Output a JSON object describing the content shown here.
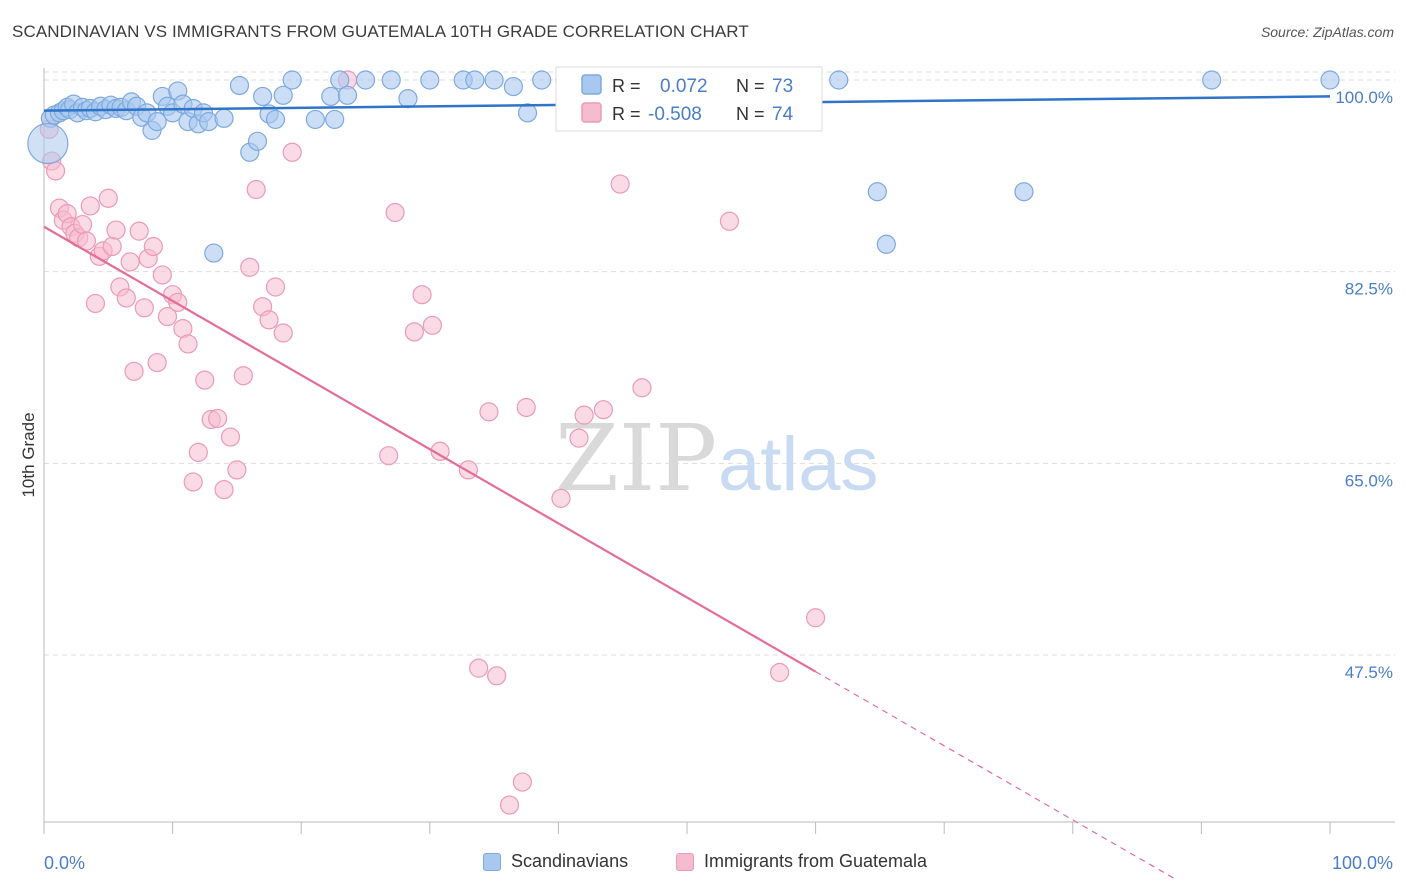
{
  "title": "SCANDINAVIAN VS IMMIGRANTS FROM GUATEMALA 10TH GRADE CORRELATION CHART",
  "source": "Source: ZipAtlas.com",
  "watermark": {
    "zip": "ZIP",
    "atlas": "atlas"
  },
  "colors": {
    "blue_fill": "#a9c8ef",
    "blue_stroke": "#7ea9e0",
    "blue_line": "#2f74c8",
    "pink_fill": "#f5bccf",
    "pink_stroke": "#ec9ab5",
    "pink_line": "#e46d98",
    "axis_label": "#4a7ec9",
    "grid": "#dddddd"
  },
  "legend_top": {
    "rows": [
      {
        "r_label": "R =",
        "r_value": "0.072",
        "n_label": "N =",
        "n_value": "73"
      },
      {
        "r_label": "R =",
        "r_value": "-0.508",
        "n_label": "N =",
        "n_value": "74"
      }
    ]
  },
  "legend_bottom": {
    "items": [
      {
        "label": "Scandinavians"
      },
      {
        "label": "Immigrants from Guatemala"
      }
    ]
  },
  "chart_data": {
    "type": "scatter",
    "title": "SCANDINAVIAN VS IMMIGRANTS FROM GUATEMALA 10TH GRADE CORRELATION CHART",
    "xlabel": "",
    "ylabel": "10th Grade",
    "xlim": [
      0,
      100
    ],
    "ylim": [
      30,
      101.5
    ],
    "x_tick_labels": [
      "0.0%",
      "100.0%"
    ],
    "y_ticks": [
      100,
      82.5,
      65,
      47.5
    ],
    "y_tick_labels": [
      "100.0%",
      "82.5%",
      "65.0%",
      "47.5%"
    ],
    "grid": true,
    "legend_placement": "top-center",
    "series": [
      {
        "name": "Scandinavians",
        "r": 0.072,
        "n": 73,
        "trend": {
          "x0": 0,
          "y0": 97.2,
          "x1": 100,
          "y1": 98.5,
          "dashed_from": null
        },
        "points": [
          [
            0.5,
            96.5
          ],
          [
            0.8,
            96.8
          ],
          [
            1.2,
            97.0
          ],
          [
            1.5,
            97.2
          ],
          [
            1.8,
            97.5
          ],
          [
            2.0,
            97.3
          ],
          [
            2.3,
            97.8
          ],
          [
            2.6,
            97.0
          ],
          [
            3.0,
            97.5
          ],
          [
            3.3,
            97.2
          ],
          [
            3.6,
            97.4
          ],
          [
            4.0,
            97.1
          ],
          [
            4.4,
            97.6
          ],
          [
            4.8,
            97.3
          ],
          [
            5.2,
            97.7
          ],
          [
            5.6,
            97.4
          ],
          [
            6.0,
            97.5
          ],
          [
            6.4,
            97.2
          ],
          [
            6.8,
            98.0
          ],
          [
            7.2,
            97.6
          ],
          [
            7.6,
            96.6
          ],
          [
            8.0,
            97.0
          ],
          [
            8.4,
            95.4
          ],
          [
            8.8,
            96.2
          ],
          [
            9.2,
            98.5
          ],
          [
            9.6,
            97.6
          ],
          [
            10.0,
            97.0
          ],
          [
            10.4,
            99.0
          ],
          [
            10.8,
            97.8
          ],
          [
            11.2,
            96.2
          ],
          [
            11.6,
            97.4
          ],
          [
            12.0,
            96.0
          ],
          [
            12.4,
            97.0
          ],
          [
            12.8,
            96.2
          ],
          [
            13.2,
            84.2
          ],
          [
            14.0,
            96.5
          ],
          [
            15.2,
            99.5
          ],
          [
            16.0,
            93.4
          ],
          [
            16.6,
            94.4
          ],
          [
            17.0,
            98.5
          ],
          [
            17.5,
            96.9
          ],
          [
            18.0,
            96.4
          ],
          [
            18.6,
            98.6
          ],
          [
            19.3,
            100
          ],
          [
            21.1,
            96.4
          ],
          [
            22.3,
            98.5
          ],
          [
            22.6,
            96.4
          ],
          [
            23.0,
            100
          ],
          [
            23.6,
            98.6
          ],
          [
            25.0,
            100
          ],
          [
            27.0,
            100
          ],
          [
            28.3,
            98.3
          ],
          [
            30.0,
            100
          ],
          [
            32.6,
            100
          ],
          [
            33.5,
            100
          ],
          [
            35.0,
            100
          ],
          [
            36.5,
            99.4
          ],
          [
            37.6,
            97.0
          ],
          [
            38.7,
            100
          ],
          [
            40.5,
            100
          ],
          [
            42.1,
            100
          ],
          [
            44.2,
            100
          ],
          [
            46.6,
            100
          ],
          [
            51.8,
            100
          ],
          [
            55.0,
            100
          ],
          [
            57.2,
            100
          ],
          [
            58.0,
            100
          ],
          [
            61.8,
            100
          ],
          [
            64.8,
            89.8
          ],
          [
            65.5,
            85.0
          ],
          [
            76.2,
            89.8
          ],
          [
            90.8,
            100
          ],
          [
            100,
            100
          ]
        ]
      },
      {
        "name": "Immigrants from Guatemala",
        "r": -0.508,
        "n": 74,
        "trend": {
          "x0": 0,
          "y0": 86.6,
          "x1": 100,
          "y1": 18.9,
          "solid_until_x": 60
        },
        "points": [
          [
            0.4,
            95.5
          ],
          [
            0.6,
            92.6
          ],
          [
            0.9,
            91.7
          ],
          [
            1.2,
            88.3
          ],
          [
            1.5,
            87.2
          ],
          [
            1.8,
            87.8
          ],
          [
            2.1,
            86.6
          ],
          [
            2.4,
            86.0
          ],
          [
            2.7,
            85.6
          ],
          [
            3.0,
            86.8
          ],
          [
            3.3,
            85.3
          ],
          [
            3.6,
            88.5
          ],
          [
            4.0,
            79.6
          ],
          [
            4.3,
            83.9
          ],
          [
            4.6,
            84.4
          ],
          [
            5.0,
            89.2
          ],
          [
            5.3,
            84.8
          ],
          [
            5.6,
            86.3
          ],
          [
            5.9,
            81.1
          ],
          [
            6.4,
            80.1
          ],
          [
            6.7,
            83.4
          ],
          [
            7.0,
            73.4
          ],
          [
            7.4,
            86.2
          ],
          [
            7.8,
            79.2
          ],
          [
            8.1,
            83.7
          ],
          [
            8.5,
            84.8
          ],
          [
            8.8,
            74.2
          ],
          [
            9.2,
            82.2
          ],
          [
            9.6,
            78.4
          ],
          [
            10.0,
            80.4
          ],
          [
            10.4,
            79.7
          ],
          [
            10.8,
            77.3
          ],
          [
            11.2,
            75.9
          ],
          [
            11.6,
            63.3
          ],
          [
            12.0,
            66.0
          ],
          [
            12.5,
            72.6
          ],
          [
            13.0,
            69.0
          ],
          [
            13.5,
            69.1
          ],
          [
            14.0,
            62.6
          ],
          [
            14.5,
            67.4
          ],
          [
            15.0,
            64.4
          ],
          [
            15.5,
            73.0
          ],
          [
            16.0,
            82.9
          ],
          [
            16.5,
            90.0
          ],
          [
            17.0,
            79.3
          ],
          [
            17.5,
            78.1
          ],
          [
            18.0,
            81.1
          ],
          [
            18.6,
            76.9
          ],
          [
            19.3,
            93.4
          ],
          [
            23.6,
            100
          ],
          [
            26.8,
            65.7
          ],
          [
            27.3,
            87.9
          ],
          [
            28.8,
            77.0
          ],
          [
            29.4,
            80.4
          ],
          [
            30.2,
            77.6
          ],
          [
            30.8,
            66.1
          ],
          [
            33.0,
            64.4
          ],
          [
            33.8,
            46.3
          ],
          [
            34.6,
            69.7
          ],
          [
            35.2,
            45.6
          ],
          [
            36.2,
            33.8
          ],
          [
            37.2,
            35.9
          ],
          [
            37.5,
            70.1
          ],
          [
            40.2,
            61.8
          ],
          [
            41.6,
            67.3
          ],
          [
            42.0,
            69.4
          ],
          [
            43.5,
            69.9
          ],
          [
            44.8,
            90.5
          ],
          [
            46.5,
            71.9
          ],
          [
            48.5,
            97.2
          ],
          [
            49.8,
            97.6
          ],
          [
            53.3,
            87.1
          ],
          [
            57.2,
            45.9
          ],
          [
            60.0,
            50.9
          ]
        ]
      }
    ]
  }
}
